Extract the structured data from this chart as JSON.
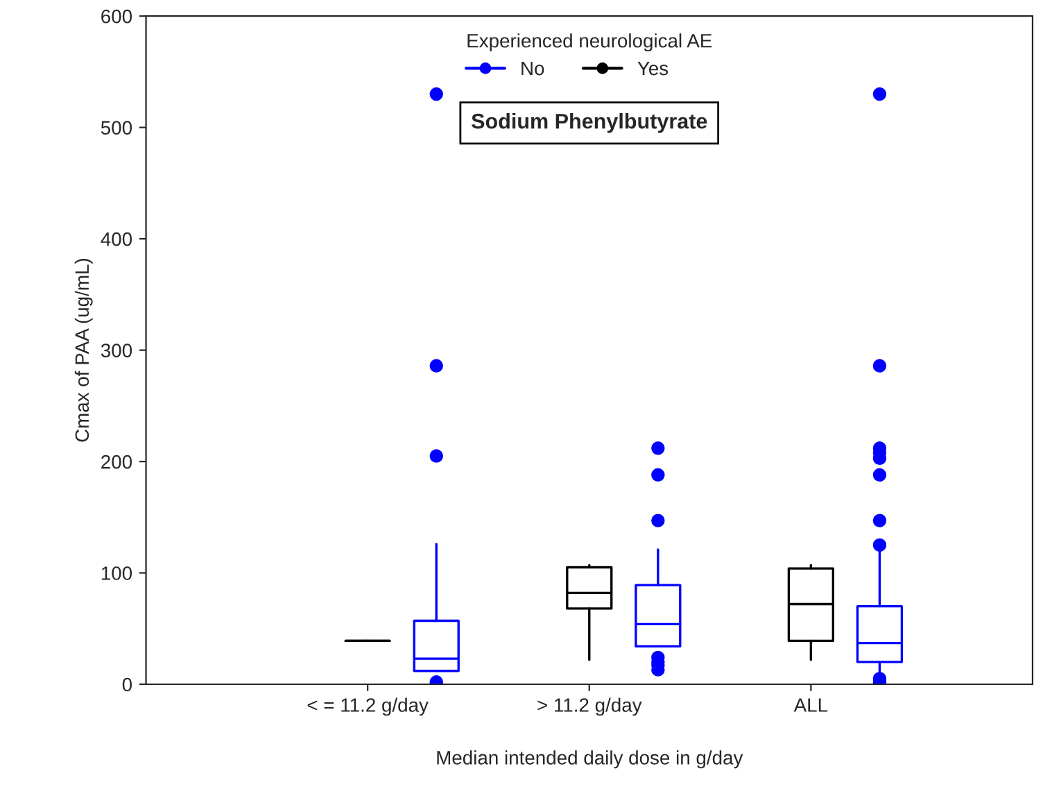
{
  "chart_data": {
    "type": "box",
    "categories": [
      "< = 11.2 g/day",
      "> 11.2 g/day",
      "ALL"
    ],
    "xlabel": "Median intended daily dose in g/day",
    "ylabel": "Cmax of PAA (ug/mL)",
    "legend_title": "Experienced neurological AE",
    "annotations": [
      "Sodium Phenylbutyrate"
    ],
    "ylim": [
      0,
      600
    ],
    "yticks": [
      0,
      100,
      200,
      300,
      400,
      500,
      600
    ],
    "legend": "top",
    "grid": false,
    "marker": "circle",
    "series": [
      {
        "name": "No",
        "color": "#0000ff",
        "boxes": [
          {
            "low": 12,
            "q1": 12,
            "median": 23,
            "q3": 57,
            "high": 126,
            "outliers": [
              2,
              205,
              286,
              530
            ]
          },
          {
            "low": 34,
            "q1": 34,
            "median": 54,
            "q3": 89,
            "high": 121,
            "outliers": [
              13,
              17,
              20,
              24,
              147,
              188,
              212
            ]
          },
          {
            "low": 10,
            "q1": 20,
            "median": 37,
            "q3": 70,
            "high": 120,
            "outliers": [
              2,
              5,
              125,
              147,
              188,
              203,
              208,
              212,
              286,
              530
            ]
          }
        ]
      },
      {
        "name": "Yes",
        "color": "#000000",
        "boxes": [
          {
            "low": 39,
            "q1": 39,
            "median": 39,
            "q3": 39,
            "high": 39
          },
          {
            "low": 22,
            "q1": 68,
            "median": 82,
            "q3": 105,
            "high": 107
          },
          {
            "low": 22,
            "q1": 39,
            "median": 72,
            "q3": 104,
            "high": 107
          }
        ]
      }
    ]
  }
}
